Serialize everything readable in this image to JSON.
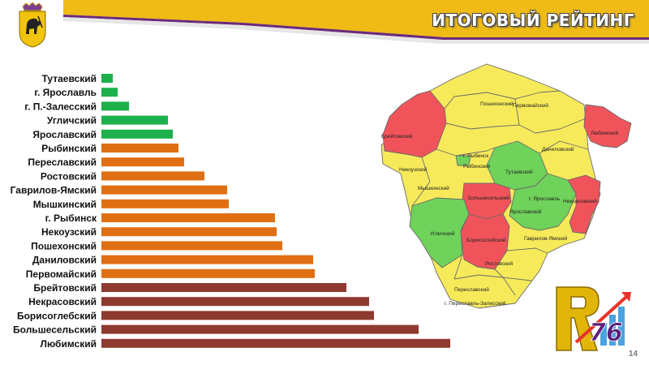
{
  "header": {
    "title": "ИТОГОВЫЙ РЕЙТИНГ"
  },
  "colors": {
    "green": "#1cb14a",
    "orange": "#e06f13",
    "brown": "#8f3a2f",
    "map_red": "#f0545a",
    "map_yellow": "#f6ea5a",
    "map_green": "#6fd25a",
    "gold": "#e2b50b",
    "purple": "#6b2a7a"
  },
  "chart_data": {
    "type": "bar",
    "orientation": "horizontal",
    "categories": [
      "Тутаевский",
      "г. Ярославль",
      "г. П.-Залесский",
      "Угличский",
      "Ярославский",
      "Рыбинский",
      "Переславский",
      "Ростовский",
      "Гаврилов-Ямский",
      "Мышкинский",
      "г. Рыбинск",
      "Некоузский",
      "Пошехонский",
      "Даниловский",
      "Первомайский",
      "Брейтовский",
      "Некрасовский",
      "Борисоглебский",
      "Большесельский",
      "Любимский"
    ],
    "values": [
      14,
      20,
      34,
      82,
      88,
      95,
      102,
      127,
      155,
      157,
      214,
      216,
      223,
      261,
      263,
      302,
      330,
      336,
      391,
      430
    ],
    "groups": [
      "green",
      "green",
      "green",
      "green",
      "green",
      "orange",
      "orange",
      "orange",
      "orange",
      "orange",
      "orange",
      "orange",
      "orange",
      "orange",
      "orange",
      "brown",
      "brown",
      "brown",
      "brown",
      "brown"
    ],
    "title": "",
    "xlabel": "",
    "ylabel": ""
  },
  "map": {
    "labels": [
      "Пошехонский",
      "Первомайский",
      "Брейтовский",
      "Любимский",
      "Даниловский",
      "г. Рыбинск",
      "Рыбинский",
      "Некоузский",
      "Тутаевский",
      "Мышкинский",
      "Большесельский",
      "г. Ярославль",
      "Некрасовский",
      "Ярославский",
      "Угличский",
      "Борисоглебский",
      "Гаврилов-Ямский",
      "Ростовский",
      "Переславский",
      "г. Переславль-Залесский"
    ]
  },
  "logo": {
    "text": "76"
  },
  "page": {
    "number": "14"
  }
}
